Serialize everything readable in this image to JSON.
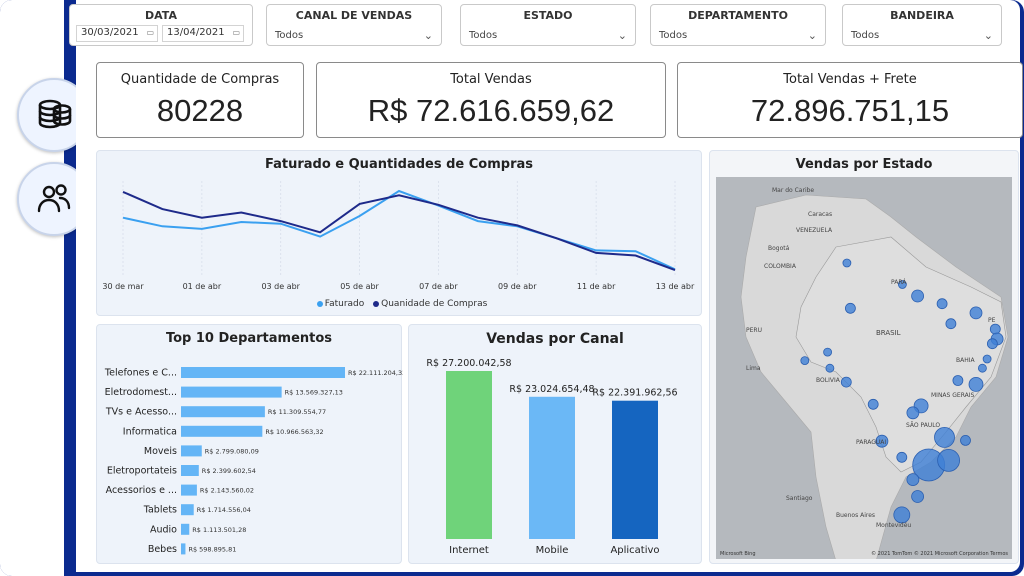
{
  "sidebar": {
    "items": [
      {
        "name": "database-icon"
      },
      {
        "name": "users-icon"
      }
    ]
  },
  "filters": {
    "data": {
      "label": "DATA",
      "start": "30/03/2021",
      "end": "13/04/2021"
    },
    "canal": {
      "label": "CANAL DE VENDAS",
      "value": "Todos"
    },
    "estado": {
      "label": "ESTADO",
      "value": "Todos"
    },
    "departamento": {
      "label": "DEPARTAMENTO",
      "value": "Todos"
    },
    "bandeira": {
      "label": "BANDEIRA",
      "value": "Todos"
    }
  },
  "kpis": {
    "quantidade": {
      "title": "Quantidade de Compras",
      "value": "80228"
    },
    "total": {
      "title": "Total Vendas",
      "value": "R$ 72.616.659,62"
    },
    "frete": {
      "title": "Total Vendas + Frete",
      "value": "72.896.751,15"
    }
  },
  "line_panel": {
    "title": "Faturado e Quantidades de Compras",
    "legend": [
      "Faturado",
      "Quanidade de Compras"
    ]
  },
  "dept_panel": {
    "title": "Top 10 Departamentos"
  },
  "canal_panel": {
    "title": "Vendas por Canal"
  },
  "map_panel": {
    "title": "Vendas por Estado",
    "labels": {
      "mar": "Mar do Caribe",
      "caracas": "Caracas",
      "venezuela": "VENEZUELA",
      "bogota": "Bogotá",
      "colombia": "COLOMBIA",
      "brasil": "BRASIL",
      "peru": "PERU",
      "lima": "Lima",
      "bolivia": "BOLIVIA",
      "paraguai": "PARAGUAI",
      "santiago": "Santiago",
      "buenos": "Buenos Aires",
      "montevideo": "Montevidéu",
      "sp": "SÃO PAULO",
      "mg": "MINAS GERAIS",
      "bahia": "BAHIA",
      "pa": "PARÁ",
      "pe": "PE"
    },
    "footer_left": "Microsoft Bing",
    "footer_right": "© 2021 TomTom © 2021 Microsoft Corporation Termos"
  },
  "colors": {
    "faturado": "#3aa0f0",
    "quantidade": "#1e2a8a",
    "dept_bar": "#64b5f6",
    "internet": "#6fd37a",
    "mobile": "#6bb8f6",
    "aplicativo": "#1565c0",
    "bubble": "#3f7fd6"
  },
  "chart_data": [
    {
      "type": "line",
      "title": "Faturado e Quantidades de Compras",
      "x": [
        "30 de mar",
        "31 de mar",
        "01 de abr",
        "02 de abr",
        "03 de abr",
        "04 de abr",
        "05 de abr",
        "06 de abr",
        "07 de abr",
        "08 de abr",
        "09 de abr",
        "10 de abr",
        "11 de abr",
        "12 de abr",
        "13 de abr"
      ],
      "xticks": [
        "30 de mar",
        "01 de abr",
        "03 de abr",
        "05 de abr",
        "07 de abr",
        "09 de abr",
        "11 de abr",
        "13 de abr"
      ],
      "series": [
        {
          "name": "Faturado",
          "values": [
            0.62,
            0.52,
            0.49,
            0.57,
            0.55,
            0.4,
            0.64,
            0.93,
            0.76,
            0.58,
            0.52,
            0.38,
            0.24,
            0.23,
            0.02
          ]
        },
        {
          "name": "Quanidade de Compras",
          "values": [
            0.92,
            0.72,
            0.62,
            0.68,
            0.58,
            0.45,
            0.78,
            0.88,
            0.77,
            0.62,
            0.53,
            0.38,
            0.21,
            0.18,
            0.01
          ]
        }
      ],
      "ylim": [
        0,
        1
      ]
    },
    {
      "type": "bar",
      "orientation": "horizontal",
      "title": "Top 10 Departamentos",
      "categories": [
        "Telefones e C...",
        "Eletrodomest...",
        "TVs e Acesso...",
        "Informatica",
        "Moveis",
        "Eletroportateis",
        "Acessorios e ...",
        "Tablets",
        "Audio",
        "Bebes"
      ],
      "values": [
        22111204.33,
        13569327.13,
        11309554.77,
        10966563.32,
        2799080.09,
        2399602.54,
        2143560.02,
        1714556.04,
        1113501.28,
        598895.81
      ],
      "data_labels": [
        "R$ 22.111.204,33",
        "R$ 13.569.327,13",
        "R$ 11.309.554,77",
        "R$ 10.966.563,32",
        "R$ 2.799.080,09",
        "R$ 2.399.602,54",
        "R$ 2.143.560,02",
        "R$ 1.714.556,04",
        "R$ 1.113.501,28",
        "R$ 598.895,81"
      ]
    },
    {
      "type": "bar",
      "title": "Vendas por Canal",
      "categories": [
        "Internet",
        "Mobile",
        "Aplicativo"
      ],
      "values": [
        27200042.58,
        23024654.48,
        22391962.56
      ],
      "data_labels": [
        "R$ 27.200.042,58",
        "R$ 23.024.654,48",
        "R$ 22.391.962,56"
      ]
    },
    {
      "type": "scatter",
      "title": "Vendas por Estado",
      "x": [
        -60.0,
        -60.6,
        -63.9,
        -67.8,
        -63.5,
        -60.7,
        -51.1,
        -48.5,
        -44.3,
        -42.8,
        -38.5,
        -35.2,
        -34.9,
        -35.7,
        -36.6,
        -37.4,
        -38.5,
        -47.9,
        -49.3,
        -54.6,
        -56.1,
        -51.2,
        -43.9,
        -46.6,
        -43.2,
        -40.3,
        -49.3,
        -48.5,
        -51.2,
        -41.6
      ],
      "y": [
        -3.1,
        2.8,
        -8.8,
        -9.9,
        -10.9,
        -12.7,
        0.0,
        -1.5,
        -2.5,
        -5.1,
        -3.7,
        -5.8,
        -7.1,
        -7.7,
        -9.7,
        -10.9,
        -13.0,
        -15.8,
        -16.7,
        -20.4,
        -15.6,
        -22.5,
        -19.9,
        -23.5,
        -22.9,
        -20.3,
        -25.4,
        -27.6,
        -30.0,
        -12.5
      ],
      "size": [
        5,
        4,
        4,
        4,
        4,
        5,
        4,
        6,
        5,
        5,
        6,
        5,
        6,
        5,
        4,
        4,
        7,
        7,
        6,
        6,
        5,
        5,
        10,
        16,
        11,
        5,
        6,
        6,
        8,
        5
      ],
      "xlim": [
        -83,
        -32
      ],
      "ylim": [
        -36,
        14
      ]
    }
  ]
}
